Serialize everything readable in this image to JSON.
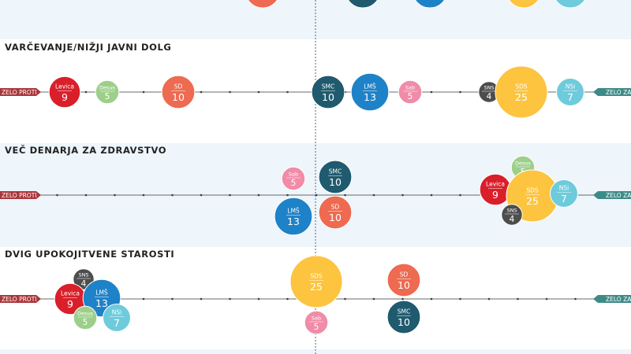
{
  "chart_data": {
    "type": "scatter",
    "scale_left_label": "ZELO PROTI",
    "scale_right_label": "ZELO ZA",
    "parties": {
      "Levica": {
        "color": "#d91f2a"
      },
      "Desus": {
        "color": "#9dcf8a"
      },
      "SD": {
        "color": "#ee6a50"
      },
      "SMC": {
        "color": "#1f5a6e"
      },
      "LMŠ": {
        "color": "#1e82c8"
      },
      "Sab": {
        "color": "#f08ca8"
      },
      "SNS": {
        "color": "#4d4d4d"
      },
      "SDS": {
        "color": "#fdc440"
      },
      "NSi": {
        "color": "#6dcbdb"
      }
    },
    "panels": [
      {
        "title": "",
        "bubbles": [
          {
            "party": "SD",
            "value": null
          },
          {
            "party": "SMC",
            "value": null
          },
          {
            "party": "LMŠ",
            "value": null
          },
          {
            "party": "SDS",
            "value": null
          },
          {
            "party": "NSi",
            "value": null
          }
        ]
      },
      {
        "title": "VARČEVANJE/NIŽJI JAVNI DOLG",
        "bubbles": [
          {
            "party": "Levica",
            "value": 9
          },
          {
            "party": "Desus",
            "value": 5
          },
          {
            "party": "SD",
            "value": 10
          },
          {
            "party": "SMC",
            "value": 10
          },
          {
            "party": "LMŠ",
            "value": 13
          },
          {
            "party": "Sab",
            "value": 5
          },
          {
            "party": "SNS",
            "value": 4
          },
          {
            "party": "SDS",
            "value": 25
          },
          {
            "party": "NSi",
            "value": 7
          }
        ]
      },
      {
        "title": "VEČ DENARJA ZA ZDRAVSTVO",
        "bubbles": [
          {
            "party": "Sab",
            "value": 5
          },
          {
            "party": "SMC",
            "value": 10
          },
          {
            "party": "LMŠ",
            "value": 13
          },
          {
            "party": "SD",
            "value": 10
          },
          {
            "party": "Desus",
            "value": 5
          },
          {
            "party": "Levica",
            "value": 9
          },
          {
            "party": "SDS",
            "value": 25
          },
          {
            "party": "NSi",
            "value": 7
          },
          {
            "party": "SNS",
            "value": 4
          }
        ]
      },
      {
        "title": "DVIG UPOKOJITVENE STAROSTI",
        "bubbles": [
          {
            "party": "SNS",
            "value": 4
          },
          {
            "party": "Levica",
            "value": 9
          },
          {
            "party": "LMŠ",
            "value": 13
          },
          {
            "party": "Desus",
            "value": 5
          },
          {
            "party": "NSi",
            "value": 7
          },
          {
            "party": "SDS",
            "value": 25
          },
          {
            "party": "Sab",
            "value": 5
          },
          {
            "party": "SD",
            "value": 10
          },
          {
            "party": "SMC",
            "value": 10
          }
        ]
      }
    ]
  }
}
